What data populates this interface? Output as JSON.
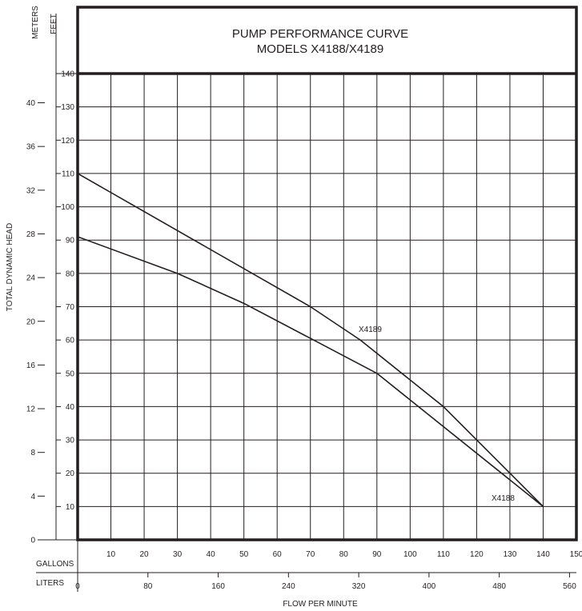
{
  "chart_data": {
    "type": "line",
    "title": "PUMP PERFORMANCE CURVE",
    "subtitle": "MODELS X4188/X4189",
    "xlabel": "FLOW PER MINUTE",
    "ylabel": "TOTAL DYNAMIC HEAD",
    "x_primary_unit": "GALLONS",
    "x_secondary_unit": "LITERS",
    "y_primary_unit": "FEET",
    "y_secondary_unit": "METERS",
    "xlim": [
      0,
      150
    ],
    "ylim": [
      0,
      140
    ],
    "grid": true,
    "x_ticks": [
      10,
      20,
      30,
      40,
      50,
      60,
      70,
      80,
      90,
      100,
      110,
      120,
      130,
      140,
      150
    ],
    "y_ticks": [
      10,
      20,
      30,
      40,
      50,
      60,
      70,
      80,
      90,
      100,
      110,
      120,
      130,
      140
    ],
    "x_secondary_ticks": [
      0,
      80,
      160,
      240,
      320,
      400,
      480,
      560
    ],
    "y_secondary_ticks": [
      0,
      4,
      8,
      12,
      16,
      20,
      24,
      28,
      32,
      36,
      40
    ],
    "series": [
      {
        "name": "X4189",
        "x": [
          0,
          70,
          85,
          110,
          140
        ],
        "y": [
          110,
          70,
          60,
          40,
          10
        ]
      },
      {
        "name": "X4188",
        "x": [
          0,
          30,
          50,
          90,
          140
        ],
        "y": [
          91,
          80,
          71,
          50,
          10
        ]
      }
    ]
  },
  "colors": {
    "ink": "#231f20",
    "background": "#ffffff"
  }
}
